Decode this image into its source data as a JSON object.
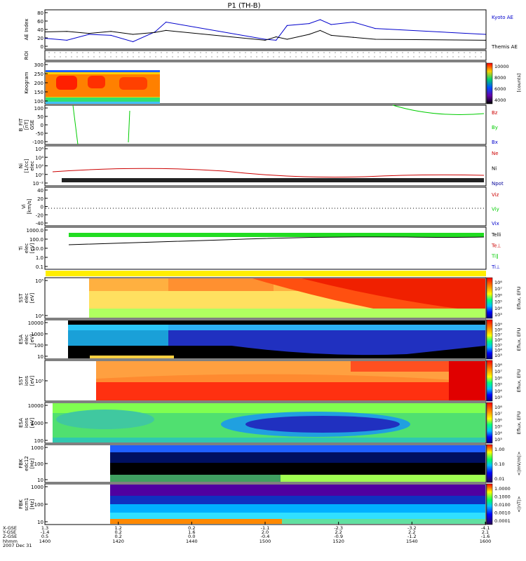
{
  "title": "P1 (TH-B)",
  "colors": {
    "kyoto": "#0000cc",
    "themis": "#000000",
    "bz": "#cc0000",
    "by": "#00cc00",
    "bx": "#0000cc",
    "ne": "#cc0000",
    "ni": "#000000",
    "npot": "#000099",
    "telli": "#000000",
    "tepar": "#cc0000",
    "tipar": "#00cc00",
    "tiperp": "#0000cc"
  },
  "panels": [
    {
      "id": "ae",
      "ylabel": "AE Index",
      "yticks": [
        "80",
        "60",
        "40",
        "20",
        "0"
      ],
      "legend": [
        "Kyoto AE",
        "Themis AE"
      ]
    },
    {
      "id": "roi",
      "ylabel": "ROI"
    },
    {
      "id": "keogram",
      "ylabel": "Keogram",
      "yticks": [
        "300",
        "250",
        "200",
        "150",
        "100"
      ],
      "cbar_ticks": [
        "10000",
        "8000",
        "6000",
        "4000"
      ],
      "cbar_label": "[counts]"
    },
    {
      "id": "bfit",
      "ylabel": "B_FIT\n[nT]\nGSE",
      "yticks": [
        "100",
        "50",
        "0",
        "-50",
        "-100"
      ],
      "legend": [
        "Bz",
        "By",
        "Bx"
      ]
    },
    {
      "id": "ni",
      "ylabel": "Ni\n[1/cc]\nelec",
      "yticks": [
        "10⁶",
        "10⁴",
        "10²",
        "10⁰",
        "10⁻²"
      ],
      "legend": [
        "Ne",
        "Ni",
        "Npot"
      ]
    },
    {
      "id": "vi",
      "ylabel": "Vi\n[km/s]",
      "yticks": [
        "40",
        "20",
        "0",
        "-20",
        "-40"
      ],
      "legend": [
        "Viz",
        "Viy",
        "Vix"
      ]
    },
    {
      "id": "ti",
      "ylabel": "Ti\nelec\n[eV]",
      "yticks": [
        "1000.0",
        "100.0",
        "10.0",
        "1.0",
        "0.1"
      ],
      "legend": [
        "Telli",
        "Te⊥",
        "Ti∥",
        "Ti⊥"
      ]
    },
    {
      "id": "sst_e",
      "ylabel": "SST\nelec\n[eV]",
      "yticks": [
        "10⁵",
        "10⁴"
      ],
      "cbar_ticks": [
        "10⁸",
        "10⁷",
        "10⁶",
        "10⁵",
        "10⁴",
        "10³"
      ],
      "cbar_label": "Eflux, EFU"
    },
    {
      "id": "esa_e",
      "ylabel": "ESA\nelec\n[eV]",
      "yticks": [
        "10000",
        "1000",
        "100",
        "10"
      ],
      "cbar_ticks": [
        "10⁹",
        "10⁸",
        "10⁷",
        "10⁶",
        "10⁵",
        "10⁴",
        "10³"
      ],
      "cbar_label": "Eflux, EFU"
    },
    {
      "id": "sst_i",
      "ylabel": "SST\nions\n[eV]",
      "yticks": [
        "10⁵"
      ],
      "cbar_ticks": [
        "10⁸",
        "10⁷",
        "10⁶",
        "10⁵",
        "10⁴",
        "10³"
      ],
      "cbar_label": "Eflux, EFU"
    },
    {
      "id": "esa_i",
      "ylabel": "ESA\nions\n[eV]",
      "yticks": [
        "10000",
        "1000",
        "100"
      ],
      "cbar_ticks": [
        "10⁸",
        "10⁷",
        "10⁶",
        "10⁵",
        "10⁴",
        "10³"
      ],
      "cbar_label": "Eflux, EFU"
    },
    {
      "id": "fbk1",
      "ylabel": "FBK\nedc12\n[Hz]",
      "yticks": [
        "1000",
        "100",
        "10"
      ],
      "cbar_ticks": [
        "1.00",
        "0.10",
        "0.01"
      ],
      "cbar_label": "<|mV/m|>"
    },
    {
      "id": "fbk2",
      "ylabel": "FBK\nscm1\n[Hz]",
      "yticks": [
        "1000",
        "100",
        "10"
      ],
      "cbar_ticks": [
        "1.0000",
        "0.1000",
        "0.0100",
        "0.0010",
        "0.0001"
      ],
      "cbar_label": "<|nT|>"
    }
  ],
  "x_axis": {
    "row_labels": [
      "X-GSE",
      "Y-GSE",
      "Z-GSE",
      "hhmm"
    ],
    "date_label": "2007 Dec 31",
    "ticks": [
      {
        "vals": [
          "1.3",
          "-1.4",
          "0.5",
          "1400"
        ]
      },
      {
        "vals": [
          "1.2",
          "0.2",
          "0.2",
          "1420"
        ]
      },
      {
        "vals": [
          "0.2",
          "1.6",
          "0.0",
          "1440"
        ]
      },
      {
        "vals": [
          "-1.1",
          "2.0",
          "-0.4",
          "1500"
        ]
      },
      {
        "vals": [
          "-2.3",
          "2.2",
          "-0.9",
          "1520"
        ]
      },
      {
        "vals": [
          "-3.2",
          "2.2",
          "-1.2",
          "1540"
        ]
      },
      {
        "vals": [
          "-4.1",
          "2.1",
          "-1.6",
          "1600"
        ]
      }
    ]
  },
  "chart_data": {
    "type": "line",
    "title": "P1 (TH-B)",
    "x_label": "hhmm",
    "x_range": [
      1400,
      1600
    ],
    "series": [
      {
        "name": "Kyoto AE",
        "x": [
          1400,
          1410,
          1420,
          1430,
          1440,
          1450,
          1455,
          1500,
          1505,
          1510,
          1520,
          1525,
          1530,
          1540,
          1550,
          1600
        ],
        "values": [
          22,
          18,
          30,
          28,
          15,
          35,
          55,
          20,
          18,
          48,
          52,
          60,
          50,
          55,
          42,
          30
        ]
      },
      {
        "name": "Themis AE",
        "x": [
          1400,
          1410,
          1420,
          1430,
          1440,
          1450,
          1455,
          1500,
          1505,
          1510,
          1520,
          1525,
          1530,
          1540,
          1550,
          1600
        ],
        "values": [
          35,
          36,
          32,
          36,
          30,
          34,
          38,
          18,
          25,
          20,
          30,
          38,
          28,
          24,
          20,
          18
        ]
      }
    ],
    "ylim": [
      0,
      80
    ]
  }
}
